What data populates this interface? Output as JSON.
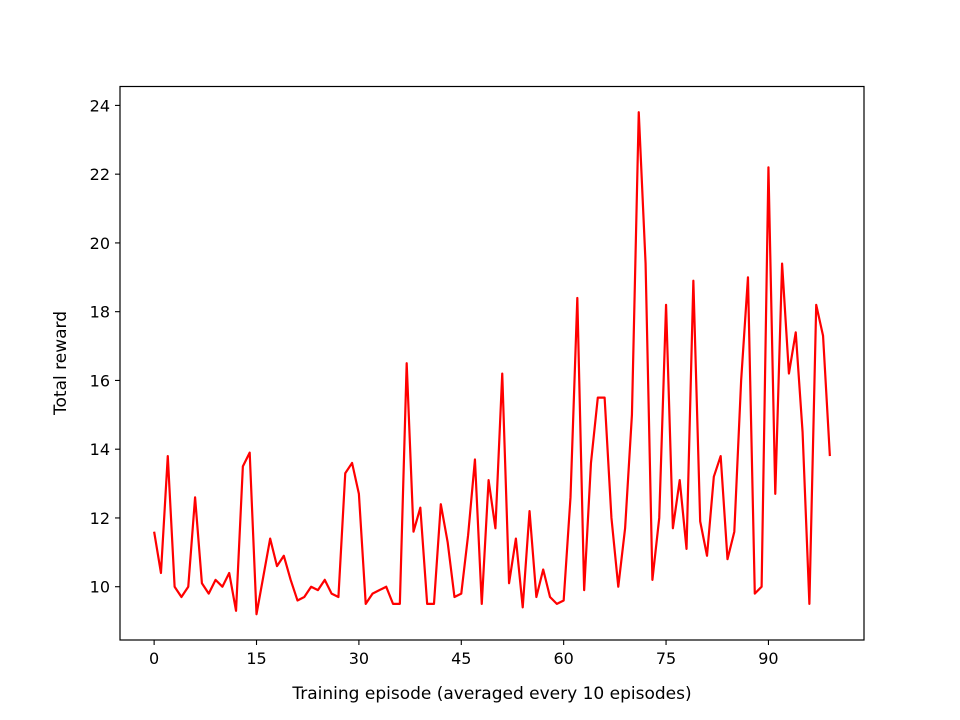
{
  "chart_data": {
    "type": "line",
    "title": "",
    "xlabel": "Training episode (averaged every 10 episodes)",
    "ylabel": "Total reward",
    "xlim": [
      -5,
      104
    ],
    "ylim": [
      8.45,
      24.55
    ],
    "xticks": [
      0,
      15,
      30,
      45,
      60,
      75,
      90
    ],
    "yticks": [
      10,
      12,
      14,
      16,
      18,
      20,
      22,
      24
    ],
    "grid": false,
    "legend": "none",
    "series": [
      {
        "color": "#ff0000",
        "values": [
          11.6,
          10.4,
          13.8,
          10.0,
          9.7,
          10.0,
          12.6,
          10.1,
          9.8,
          10.2,
          10.0,
          10.4,
          9.3,
          13.5,
          13.9,
          9.2,
          10.3,
          11.4,
          10.6,
          10.9,
          10.2,
          9.6,
          9.7,
          10.0,
          9.9,
          10.2,
          9.8,
          9.7,
          13.3,
          13.6,
          12.7,
          9.5,
          9.8,
          9.9,
          10.0,
          9.5,
          9.5,
          16.5,
          11.6,
          12.3,
          9.5,
          9.5,
          12.4,
          11.3,
          9.7,
          9.8,
          11.5,
          13.7,
          9.5,
          13.1,
          11.7,
          16.2,
          10.1,
          11.4,
          9.4,
          12.2,
          9.7,
          10.5,
          9.7,
          9.5,
          9.6,
          12.6,
          18.4,
          9.9,
          13.6,
          15.5,
          15.5,
          12.0,
          10.0,
          11.7,
          15.0,
          23.8,
          19.4,
          10.2,
          12.0,
          18.2,
          11.7,
          13.1,
          11.1,
          18.9,
          11.9,
          10.9,
          13.2,
          13.8,
          10.8,
          11.6,
          16.0,
          19.0,
          9.8,
          10.0,
          22.2,
          12.7,
          19.4,
          16.2,
          17.4,
          14.5,
          9.5,
          18.2,
          17.3,
          13.8
        ]
      }
    ]
  }
}
